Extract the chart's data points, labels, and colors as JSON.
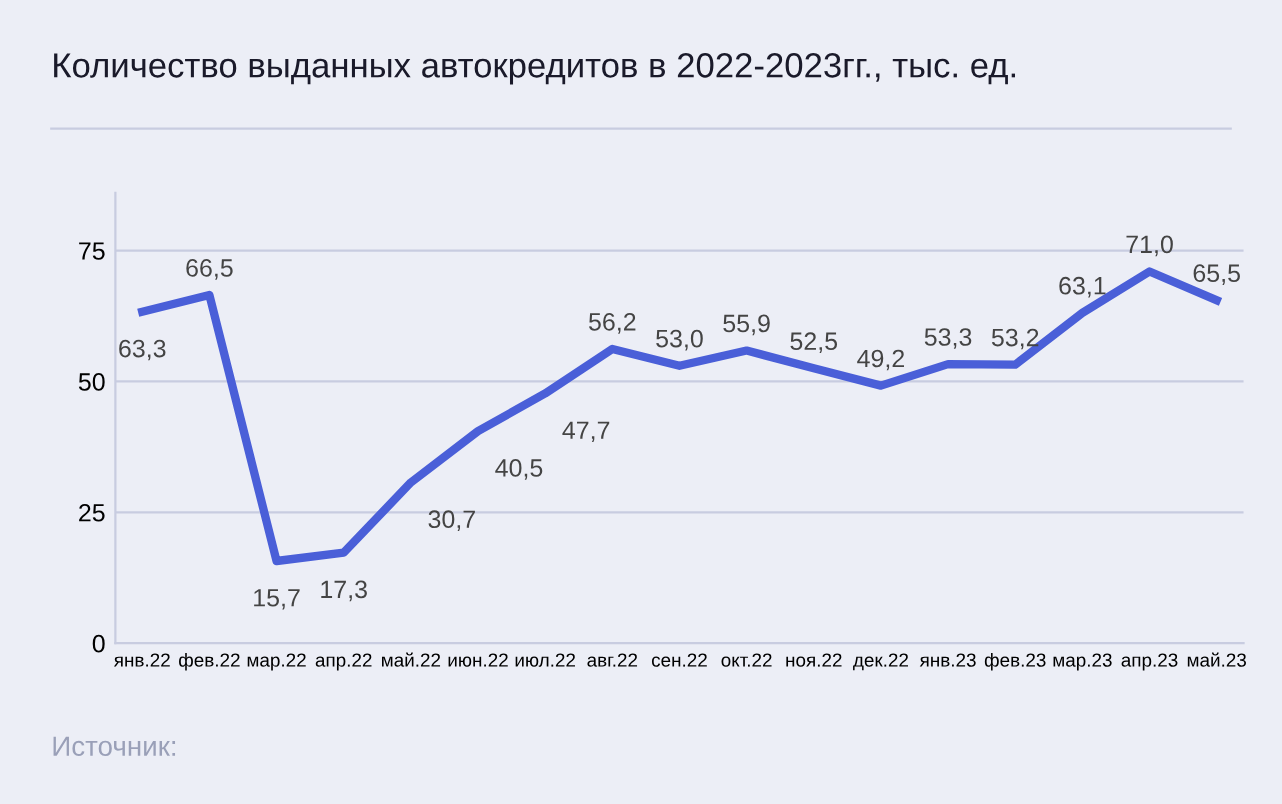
{
  "chart_data": {
    "type": "line",
    "title": "Количество выданных автокредитов в 2022-2023гг., тыс. ед.",
    "categories": [
      "янв.22",
      "фев.22",
      "мар.22",
      "апр.22",
      "май.22",
      "июн.22",
      "июл.22",
      "авг.22",
      "сен.22",
      "окт.22",
      "ноя.22",
      "дек.22",
      "янв.23",
      "фев.23",
      "мар.23",
      "апр.23",
      "май.23"
    ],
    "series": [
      {
        "color": "#4a5fd8",
        "values": [
          63.3,
          66.5,
          15.7,
          17.3,
          30.7,
          40.5,
          47.7,
          56.2,
          53.0,
          55.9,
          52.5,
          49.2,
          53.3,
          53.2,
          63.1,
          71.0,
          65.5
        ],
        "value_labels": [
          "63,3",
          "66,5",
          "15,7",
          "17,3",
          "30,7",
          "40,5",
          "47,7",
          "56,2",
          "53,0",
          "55,9",
          "52,5",
          "49,2",
          "53,3",
          "53,2",
          "63,1",
          "71,0",
          "65,5"
        ]
      }
    ],
    "ylim": [
      0,
      86
    ],
    "yticks": [
      0,
      25,
      50,
      75
    ],
    "grid": "y",
    "marker": "none",
    "line_style": "solid",
    "annotations": [
      "Источник:"
    ]
  }
}
